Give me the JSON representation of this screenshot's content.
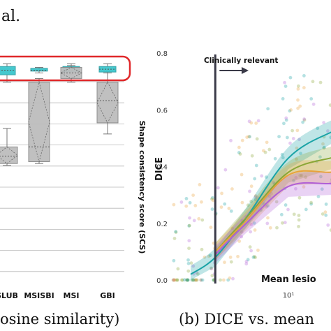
{
  "header_fragment": "al.",
  "chart_data": [
    {
      "type": "box",
      "categories": [
        "SLUB",
        "MSISBI",
        "MSI",
        "GBI"
      ],
      "ylabel": "Shape consistency score (SCS)",
      "caption": "osine similarity)",
      "highlight_color": "#e0282a",
      "series": [
        {
          "name": "",
          "color": "#3cc6cc",
          "boxes": [
            {
              "category": "SLUB",
              "min": 0.9,
              "q1": 0.94,
              "median": 0.965,
              "q3": 0.985,
              "max": 1.0
            },
            {
              "category": "MSISBI",
              "min": 0.95,
              "q1": 0.96,
              "median": 0.965,
              "q3": 0.975,
              "max": 0.98
            },
            {
              "category": "MSI",
              "min": 0.94,
              "q1": 0.955,
              "median": 0.965,
              "q3": 0.985,
              "max": 1.0
            },
            {
              "category": "GBI",
              "min": 0.95,
              "q1": 0.955,
              "median": 0.97,
              "q3": 0.985,
              "max": 1.0
            }
          ]
        },
        {
          "name": "",
          "color": "#bdbdbd",
          "boxes": [
            {
              "category": "SLUB",
              "min": 0.45,
              "q1": 0.46,
              "median": 0.5,
              "q3": 0.55,
              "max": 0.65
            },
            {
              "category": "MSISBI",
              "min": 0.46,
              "q1": 0.47,
              "median": 0.55,
              "q3": 0.9,
              "max": 0.92
            },
            {
              "category": "MSI",
              "min": 0.9,
              "q1": 0.92,
              "median": 0.95,
              "q3": 0.98,
              "max": 0.99
            },
            {
              "category": "GBI",
              "min": 0.62,
              "q1": 0.68,
              "median": 0.8,
              "q3": 0.9,
              "max": 0.95
            }
          ]
        }
      ]
    },
    {
      "type": "scatter",
      "xlabel": "Mean lesio",
      "ylabel": "DICE",
      "xscale": "log",
      "x_ticks": [
        "10¹"
      ],
      "y_ticks": [
        "0.0",
        "0.2",
        "0.4",
        "0.6",
        "0.8"
      ],
      "ylim": [
        0,
        0.8
      ],
      "xlim": [
        1.5,
        50
      ],
      "annotation": "Clinically relevant",
      "threshold_x": 3,
      "caption": "(b) DICE vs. mean",
      "series": [
        {
          "name": "",
          "color": "#1aa3a6",
          "x": [
            2,
            3,
            5,
            10,
            20,
            30,
            45
          ],
          "y": [
            0.02,
            0.08,
            0.22,
            0.43,
            0.52,
            0.54,
            0.53
          ]
        },
        {
          "name": "",
          "color": "#8aa636",
          "x": [
            3,
            5,
            10,
            20,
            30,
            45
          ],
          "y": [
            0.1,
            0.22,
            0.38,
            0.43,
            0.44,
            0.43
          ]
        },
        {
          "name": "",
          "color": "#e8a23a",
          "x": [
            3,
            5,
            10,
            20,
            30,
            45
          ],
          "y": [
            0.1,
            0.21,
            0.37,
            0.38,
            0.39,
            0.39
          ]
        },
        {
          "name": "",
          "color": "#b05fd6",
          "x": [
            3,
            5,
            10,
            20,
            30,
            45
          ],
          "y": [
            0.09,
            0.2,
            0.33,
            0.34,
            0.35,
            0.34
          ]
        }
      ]
    }
  ]
}
